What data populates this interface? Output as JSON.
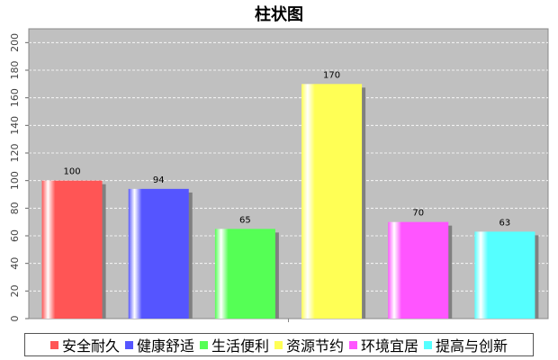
{
  "chart_data": {
    "type": "bar",
    "title": "柱状图",
    "categories": [
      "安全耐久",
      "健康舒适",
      "生活便利",
      "资源节约",
      "环境宜居",
      "提高与创新"
    ],
    "values": [
      100,
      94,
      65,
      170,
      70,
      63
    ],
    "data_labels": [
      "100",
      "94",
      "65",
      "170",
      "70",
      "63"
    ],
    "colors": [
      "#ff5555",
      "#5555ff",
      "#55ff55",
      "#ffff55",
      "#ff55ff",
      "#55ffff"
    ],
    "ylim": [
      0,
      210
    ],
    "y_ticks": [
      0,
      20,
      40,
      60,
      80,
      100,
      120,
      140,
      160,
      180,
      200
    ],
    "xlabel": "",
    "ylabel": "",
    "grid": true,
    "plot_background": "#c0c0c0",
    "legend_position": "bottom",
    "legend": [
      "安全耐久",
      "健康舒适",
      "生活便利",
      "资源节约",
      "环境宜居",
      "提高与创新"
    ]
  }
}
